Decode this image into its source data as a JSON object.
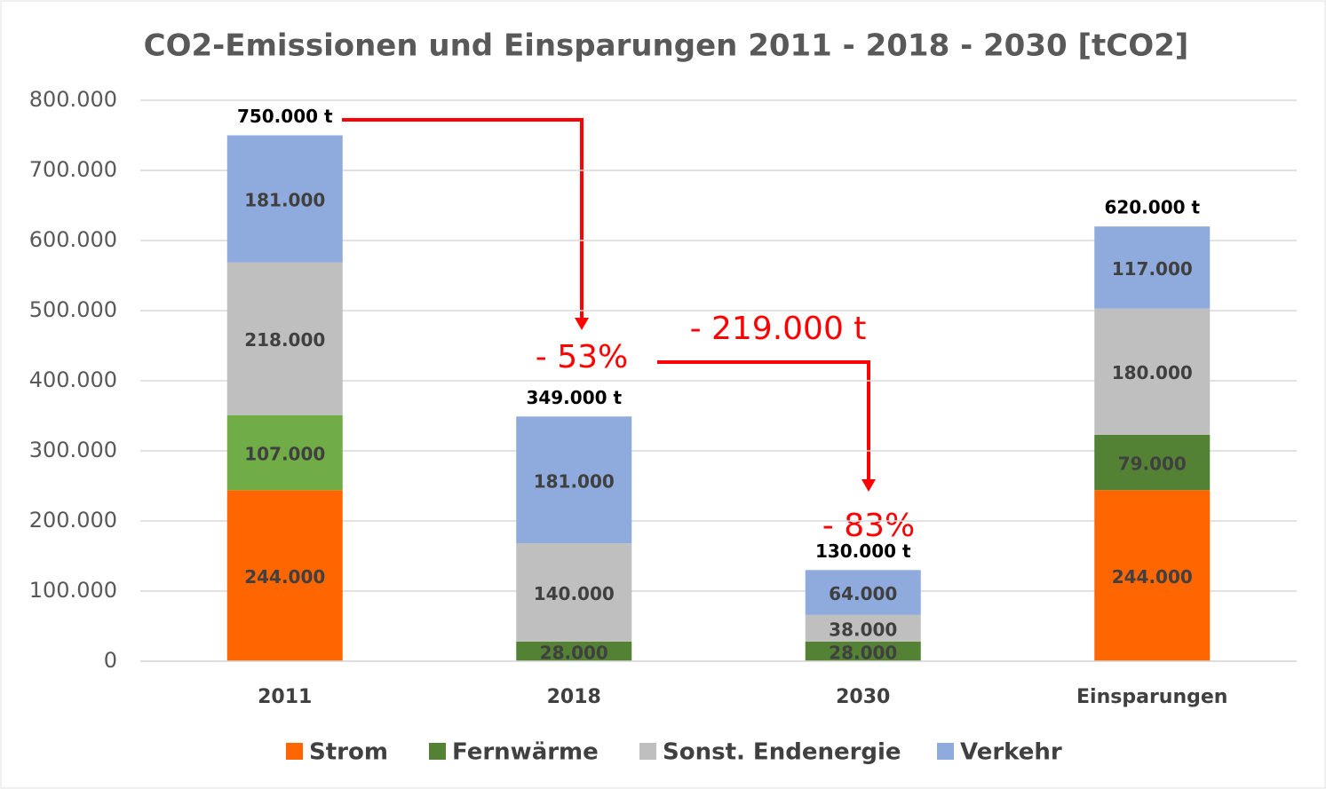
{
  "chart_data": {
    "type": "stacked_bar",
    "title": "CO2-Emissionen und Einsparungen 2011 - 2018 - 2030 [tCO2]",
    "categories": [
      "2011",
      "2018",
      "2030",
      "Einsparungen"
    ],
    "series": [
      {
        "name": "Strom",
        "color": "#ff6600",
        "values": [
          244000,
          null,
          null,
          244000
        ],
        "value_labels": [
          "244.000",
          null,
          null,
          "244.000"
        ]
      },
      {
        "name": "Fernwärme",
        "color": "#548235",
        "colors": [
          "#70ad47",
          "#548235",
          "#548235",
          "#548235"
        ],
        "values": [
          107000,
          28000,
          28000,
          79000
        ],
        "value_labels": [
          "107.000",
          "28.000",
          "28.000",
          "79.000"
        ]
      },
      {
        "name": "Sonst. Endenergie",
        "color": "#bfbfbf",
        "values": [
          218000,
          140000,
          38000,
          180000
        ],
        "value_labels": [
          "218.000",
          "140.000",
          "38.000",
          "180.000"
        ]
      },
      {
        "name": "Verkehr",
        "color": "#8faadc",
        "values": [
          181000,
          181000,
          64000,
          117000
        ],
        "value_labels": [
          "181.000",
          "181.000",
          "64.000",
          "117.000"
        ]
      }
    ],
    "totals": [
      750000,
      349000,
      130000,
      620000
    ],
    "total_labels": [
      "750.000 t",
      "349.000 t",
      "130.000 t",
      "620.000 t"
    ],
    "annotations": [
      "- 53%",
      "- 219.000 t",
      "- 83%"
    ],
    "ylim": [
      0,
      800000
    ],
    "yticks": [
      0,
      {
        "value": 100000,
        "label": "100.000"
      },
      {
        "value": 200000,
        "label": "200.000"
      },
      {
        "value": 300000,
        "label": "300.000"
      },
      {
        "value": 400000,
        "label": "400.000"
      },
      {
        "value": 500000,
        "label": "500.000"
      },
      {
        "value": 600000,
        "label": "600.000"
      },
      {
        "value": 700000,
        "label": "700.000"
      },
      {
        "value": 800000,
        "label": "800.000"
      }
    ],
    "grid": true,
    "legend": "bottom"
  }
}
